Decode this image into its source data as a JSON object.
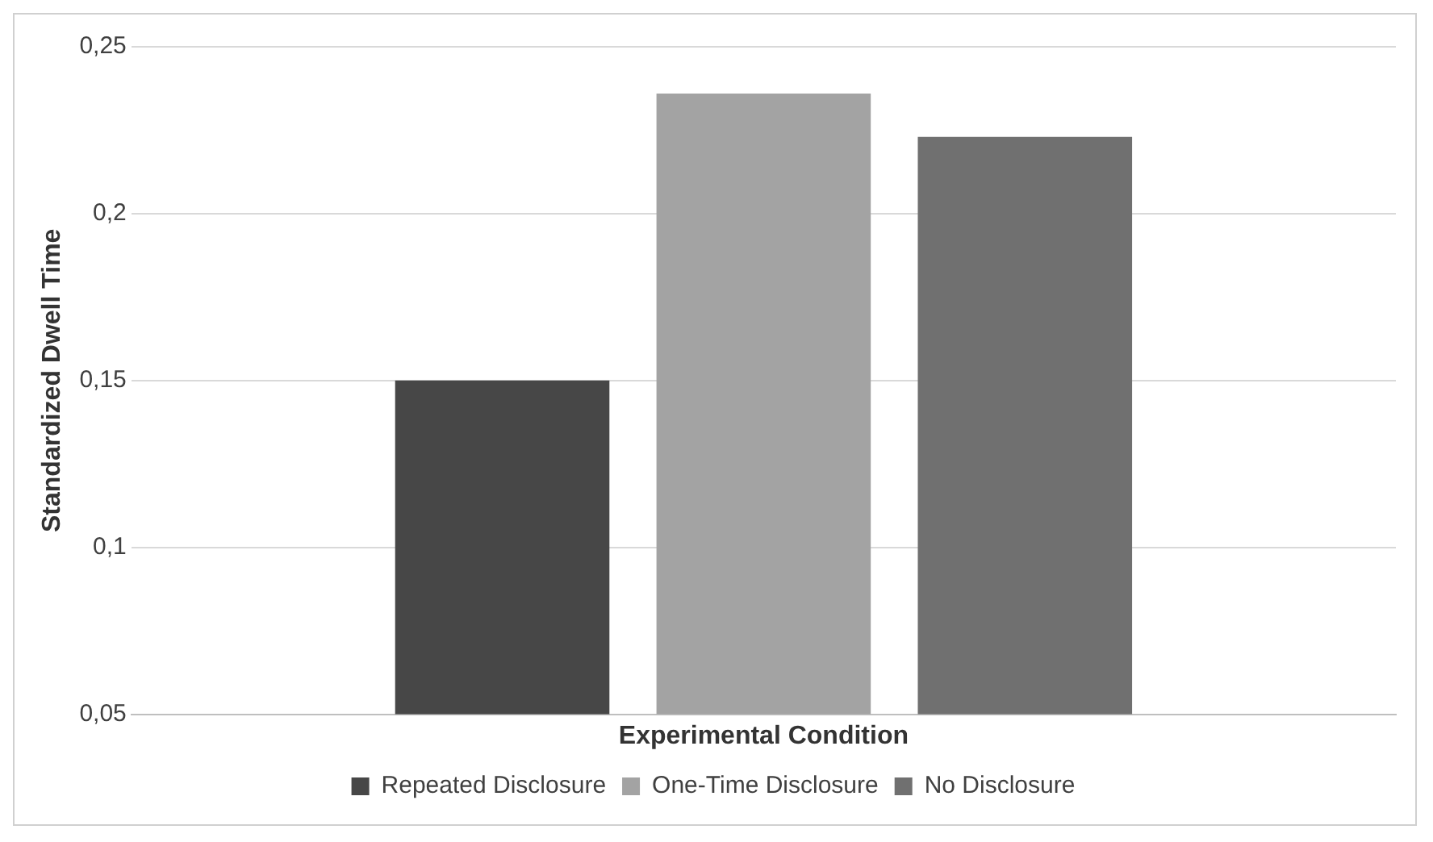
{
  "chart_data": {
    "type": "bar",
    "xlabel": "Experimental Condition",
    "ylabel": "Standardized Dwell Time",
    "categories": [
      null
    ],
    "series": [
      {
        "name": "Repeated Disclosure",
        "color": "#474747",
        "values": [
          0.15
        ]
      },
      {
        "name": "One-Time Disclosure",
        "color": "#a3a3a3",
        "values": [
          0.236
        ]
      },
      {
        "name": "No Disclosure",
        "color": "#707070",
        "values": [
          0.223
        ]
      }
    ],
    "ylim": [
      0.05,
      0.25
    ],
    "yticks": [
      {
        "value": 0.05,
        "label": "0,05"
      },
      {
        "value": 0.1,
        "label": "0,1"
      },
      {
        "value": 0.15,
        "label": "0,15"
      },
      {
        "value": 0.2,
        "label": "0,2"
      },
      {
        "value": 0.25,
        "label": "0,25"
      }
    ],
    "grid": "y",
    "legend": "bottom"
  }
}
